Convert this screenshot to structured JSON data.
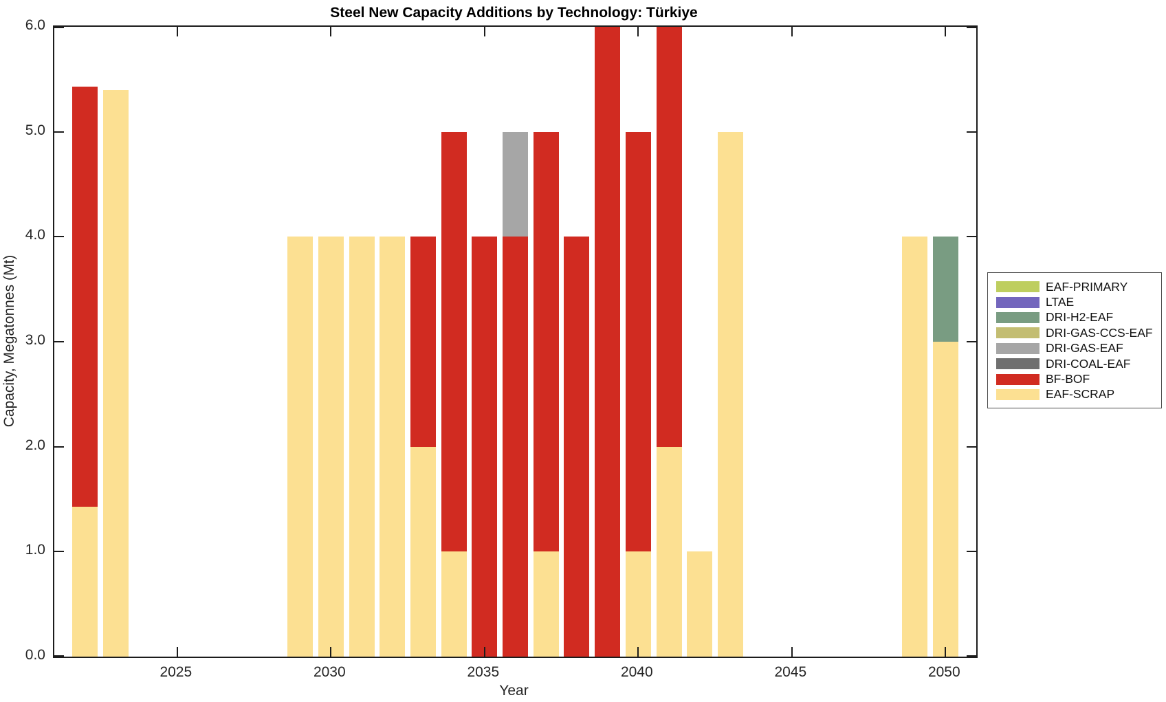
{
  "chart_data": {
    "type": "bar",
    "stacked": true,
    "title": "Steel New Capacity Additions by Technology: Türkiye",
    "xlabel": "Year",
    "ylabel": "Capacity, Megatonnes (Mt)",
    "xlim": [
      2021,
      2051
    ],
    "ylim": [
      0.0,
      6.0
    ],
    "x_ticks": [
      2025,
      2030,
      2035,
      2040,
      2045,
      2050
    ],
    "y_ticks": [
      0,
      1,
      2,
      3,
      4,
      5,
      6
    ],
    "y_tick_labels": [
      "0.0",
      "1.0",
      "2.0",
      "3.0",
      "4.0",
      "5.0",
      "6.0"
    ],
    "grid": false,
    "legend_position": "right-center-overlapping",
    "technologies": [
      {
        "name": "EAF-PRIMARY",
        "color": "#bece5f"
      },
      {
        "name": "LTAE",
        "color": "#7366bd"
      },
      {
        "name": "DRI-H2-EAF",
        "color": "#799c82"
      },
      {
        "name": "DRI-GAS-CCS-EAF",
        "color": "#c3bd72"
      },
      {
        "name": "DRI-GAS-EAF",
        "color": "#a6a6a6"
      },
      {
        "name": "DRI-COAL-EAF",
        "color": "#6f6f6f"
      },
      {
        "name": "BF-BOF",
        "color": "#d12b21"
      },
      {
        "name": "EAF-SCRAP",
        "color": "#fce092"
      }
    ],
    "bars": [
      {
        "year": 2022,
        "segments": [
          {
            "tech": "EAF-SCRAP",
            "value": 1.43
          },
          {
            "tech": "BF-BOF",
            "value": 4.0
          }
        ]
      },
      {
        "year": 2023,
        "segments": [
          {
            "tech": "EAF-SCRAP",
            "value": 5.4
          }
        ]
      },
      {
        "year": 2029,
        "segments": [
          {
            "tech": "EAF-SCRAP",
            "value": 4.0
          }
        ]
      },
      {
        "year": 2030,
        "segments": [
          {
            "tech": "EAF-SCRAP",
            "value": 4.0
          }
        ]
      },
      {
        "year": 2031,
        "segments": [
          {
            "tech": "EAF-SCRAP",
            "value": 4.0
          }
        ]
      },
      {
        "year": 2032,
        "segments": [
          {
            "tech": "EAF-SCRAP",
            "value": 4.0
          }
        ]
      },
      {
        "year": 2033,
        "segments": [
          {
            "tech": "EAF-SCRAP",
            "value": 2.0
          },
          {
            "tech": "BF-BOF",
            "value": 2.0
          }
        ]
      },
      {
        "year": 2034,
        "segments": [
          {
            "tech": "EAF-SCRAP",
            "value": 1.0
          },
          {
            "tech": "BF-BOF",
            "value": 4.0
          }
        ]
      },
      {
        "year": 2035,
        "segments": [
          {
            "tech": "BF-BOF",
            "value": 4.0
          }
        ]
      },
      {
        "year": 2036,
        "segments": [
          {
            "tech": "BF-BOF",
            "value": 4.0
          },
          {
            "tech": "DRI-GAS-EAF",
            "value": 1.0
          }
        ]
      },
      {
        "year": 2037,
        "segments": [
          {
            "tech": "EAF-SCRAP",
            "value": 1.0
          },
          {
            "tech": "BF-BOF",
            "value": 4.0
          }
        ]
      },
      {
        "year": 2038,
        "segments": [
          {
            "tech": "BF-BOF",
            "value": 4.0
          }
        ]
      },
      {
        "year": 2039,
        "segments": [
          {
            "tech": "BF-BOF",
            "value": 6.0
          }
        ]
      },
      {
        "year": 2040,
        "segments": [
          {
            "tech": "EAF-SCRAP",
            "value": 1.0
          },
          {
            "tech": "BF-BOF",
            "value": 4.0
          }
        ]
      },
      {
        "year": 2041,
        "segments": [
          {
            "tech": "EAF-SCRAP",
            "value": 2.0
          },
          {
            "tech": "BF-BOF",
            "value": 4.0
          }
        ]
      },
      {
        "year": 2042,
        "segments": [
          {
            "tech": "EAF-SCRAP",
            "value": 1.0
          }
        ]
      },
      {
        "year": 2043,
        "segments": [
          {
            "tech": "EAF-SCRAP",
            "value": 5.0
          }
        ]
      },
      {
        "year": 2049,
        "segments": [
          {
            "tech": "EAF-SCRAP",
            "value": 4.0
          }
        ]
      },
      {
        "year": 2050,
        "segments": [
          {
            "tech": "EAF-SCRAP",
            "value": 3.0
          },
          {
            "tech": "DRI-H2-EAF",
            "value": 1.0
          }
        ]
      }
    ]
  }
}
